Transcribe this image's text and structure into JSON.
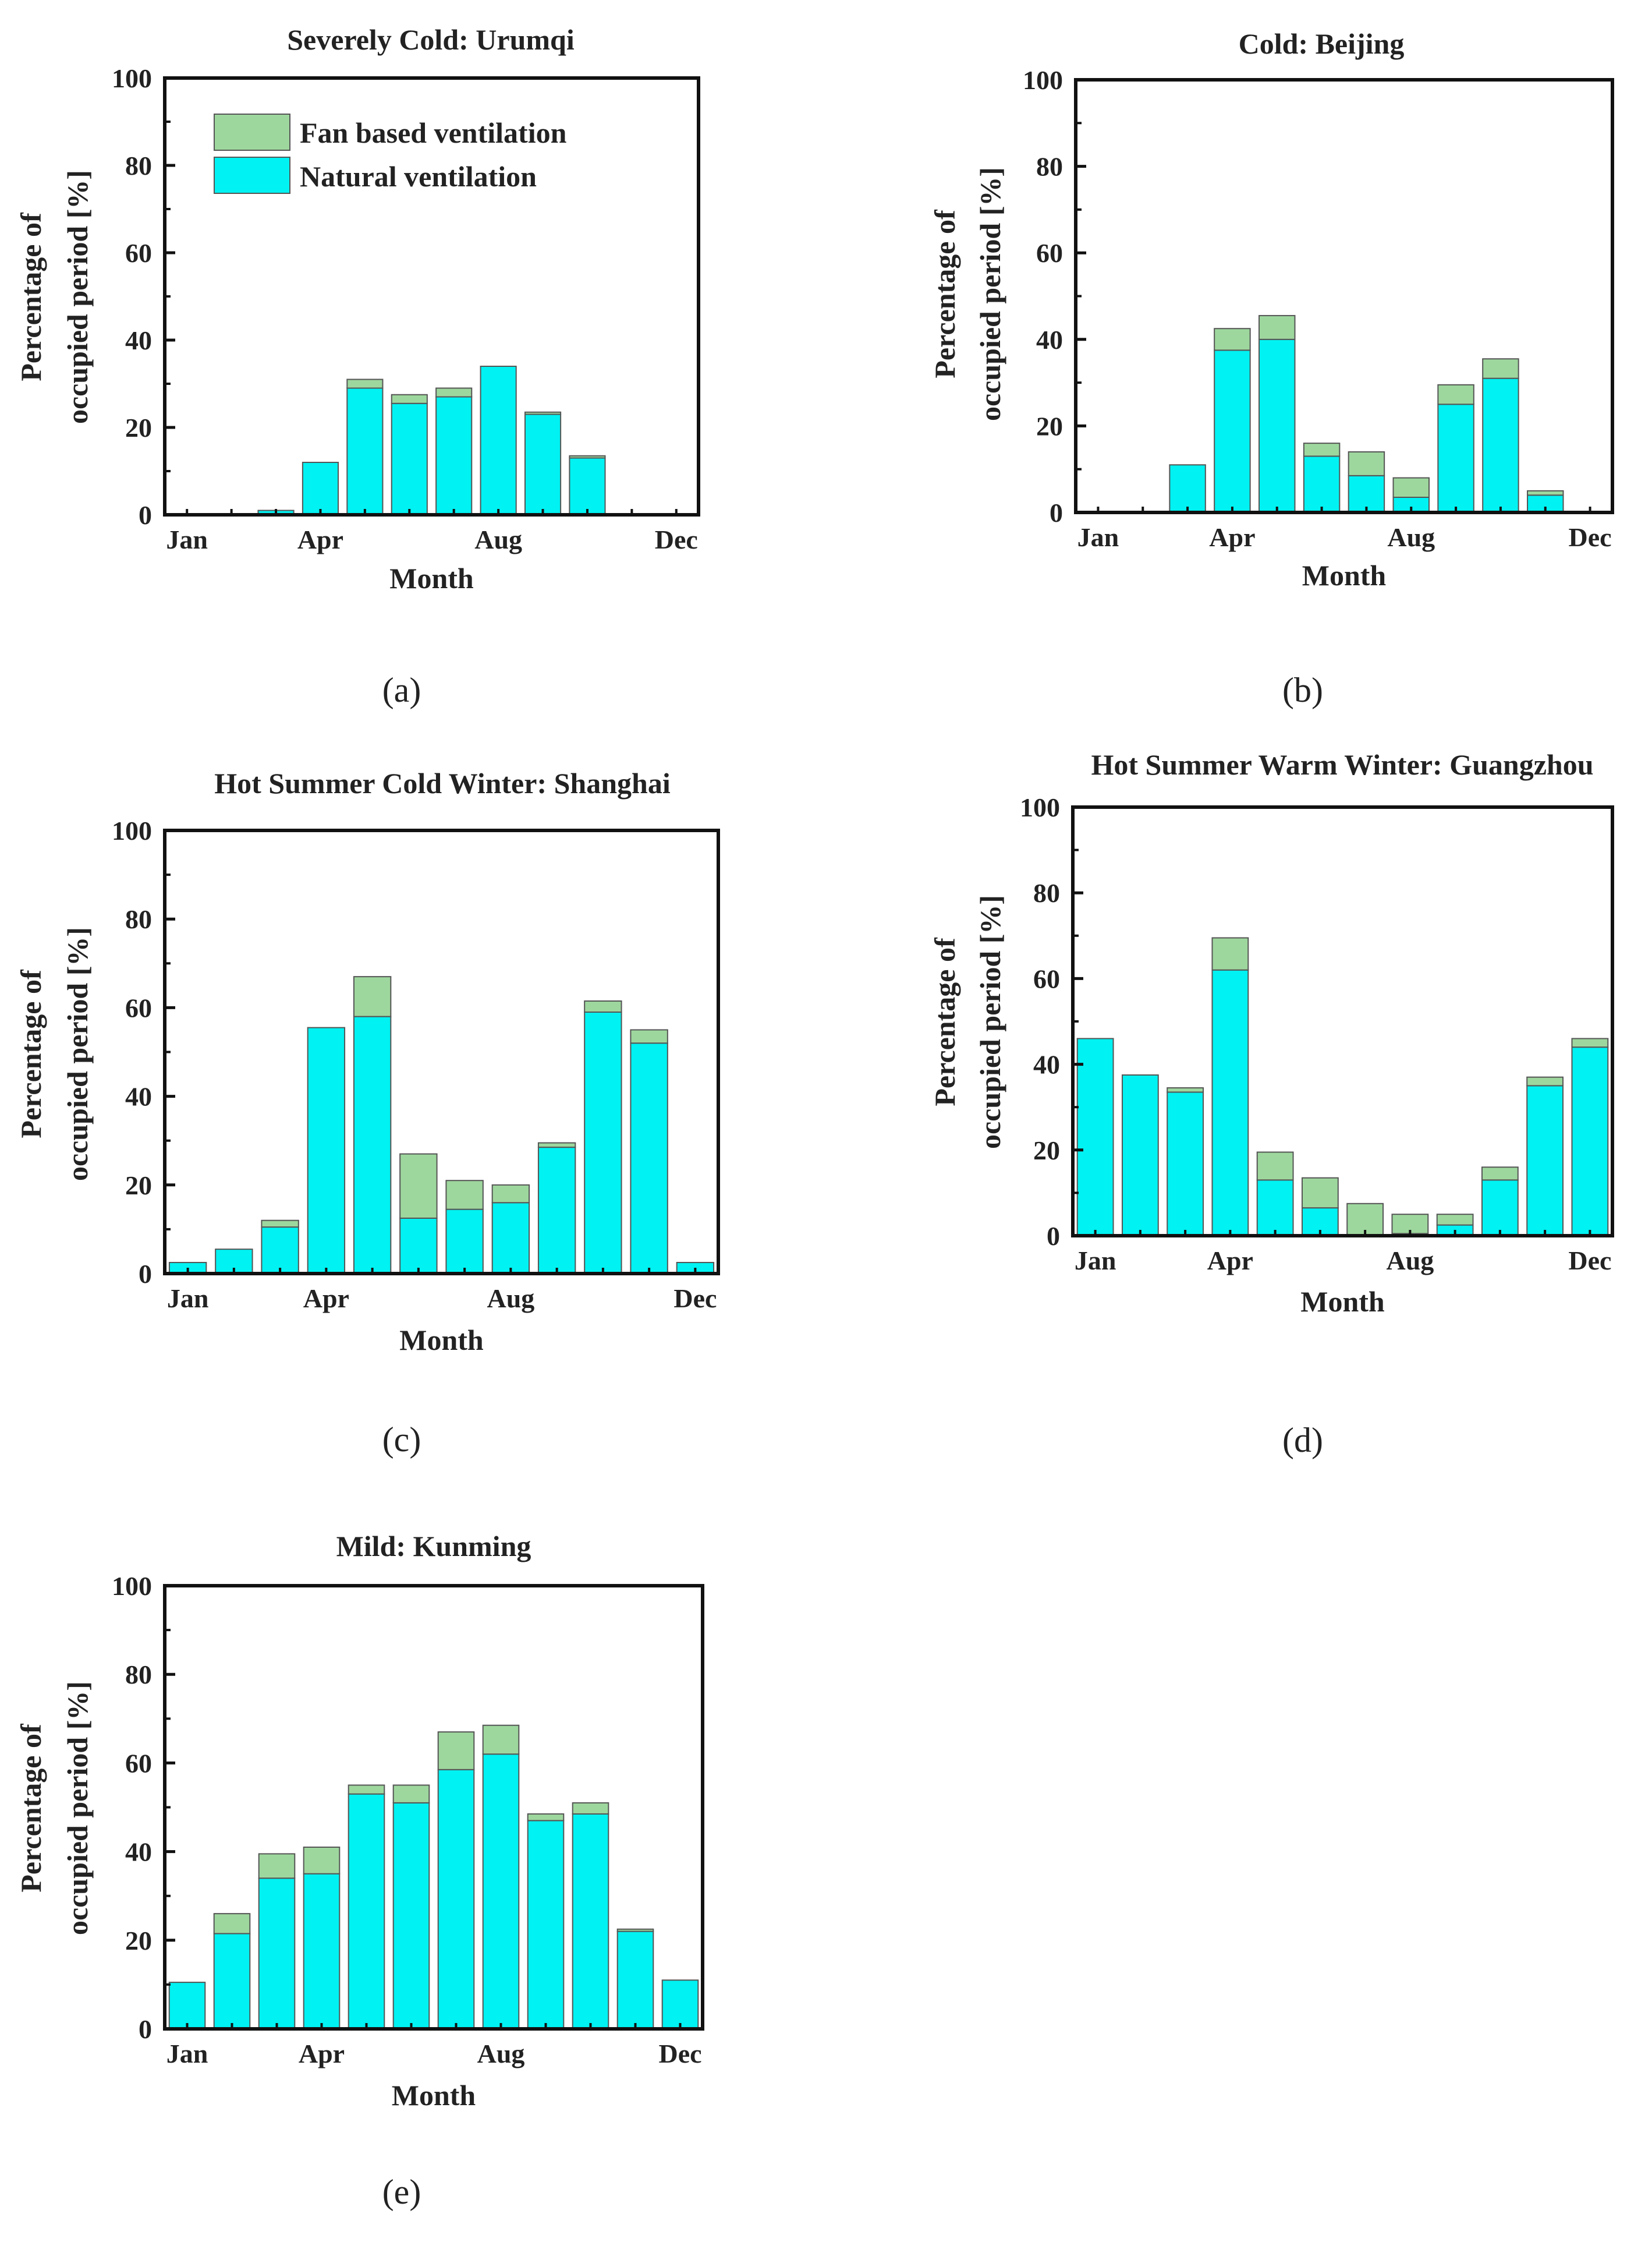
{
  "figure": {
    "colors": {
      "natural": "#00F2F2",
      "fan": "#9ED79E",
      "edge": "#555555",
      "frame": "#111111"
    },
    "legend": {
      "fan_label": "Fan based ventilation",
      "natural_label": "Natural ventilation",
      "placement": "top-left"
    }
  },
  "chart_data": [
    {
      "type": "bar",
      "stacked": true,
      "title": "Severely Cold: Urumqi",
      "caption": "(a)",
      "xlabel": "Month",
      "ylabel_lines": [
        "Percentage of",
        "occupied period [%]"
      ],
      "ylim": [
        0,
        100
      ],
      "yticks": [
        "0",
        "20",
        "40",
        "60",
        "80",
        "100"
      ],
      "xtick_labels": [
        {
          "month": 1,
          "label": "Jan"
        },
        {
          "month": 4,
          "label": "Apr"
        },
        {
          "month": 8,
          "label": "Aug"
        },
        {
          "month": 12,
          "label": "Dec"
        }
      ],
      "categories": [
        1,
        2,
        3,
        4,
        5,
        6,
        7,
        8,
        9,
        10,
        11,
        12
      ],
      "series": [
        {
          "name": "Natural ventilation",
          "values": [
            0,
            0,
            1,
            12,
            29,
            25.5,
            27,
            34,
            23,
            13,
            0,
            0
          ]
        },
        {
          "name": "Fan based ventilation",
          "values": [
            0,
            0,
            0,
            0,
            2,
            2,
            2,
            0,
            0.5,
            0.5,
            0,
            0
          ]
        }
      ],
      "show_legend": true
    },
    {
      "type": "bar",
      "stacked": true,
      "title": "Cold: Beijing",
      "caption": "(b)",
      "xlabel": "Month",
      "ylabel_lines": [
        "Percentage of",
        "occupied period [%]"
      ],
      "ylim": [
        0,
        100
      ],
      "yticks": [
        "0",
        "20",
        "40",
        "60",
        "80",
        "100"
      ],
      "xtick_labels": [
        {
          "month": 1,
          "label": "Jan"
        },
        {
          "month": 4,
          "label": "Apr"
        },
        {
          "month": 8,
          "label": "Aug"
        },
        {
          "month": 12,
          "label": "Dec"
        }
      ],
      "categories": [
        1,
        2,
        3,
        4,
        5,
        6,
        7,
        8,
        9,
        10,
        11,
        12
      ],
      "series": [
        {
          "name": "Natural ventilation",
          "values": [
            0,
            0,
            11,
            37.5,
            40,
            13,
            8.5,
            3.5,
            25,
            31,
            4,
            0
          ]
        },
        {
          "name": "Fan based ventilation",
          "values": [
            0,
            0,
            0,
            5,
            5.5,
            3,
            5.5,
            4.5,
            4.5,
            4.5,
            1,
            0
          ]
        }
      ],
      "show_legend": false
    },
    {
      "type": "bar",
      "stacked": true,
      "title": "Hot Summer Cold Winter: Shanghai",
      "caption": "(c)",
      "xlabel": "Month",
      "ylabel_lines": [
        "Percentage of",
        "occupied period [%]"
      ],
      "ylim": [
        0,
        100
      ],
      "yticks": [
        "0",
        "20",
        "40",
        "60",
        "80",
        "100"
      ],
      "xtick_labels": [
        {
          "month": 1,
          "label": "Jan"
        },
        {
          "month": 4,
          "label": "Apr"
        },
        {
          "month": 8,
          "label": "Aug"
        },
        {
          "month": 12,
          "label": "Dec"
        }
      ],
      "categories": [
        1,
        2,
        3,
        4,
        5,
        6,
        7,
        8,
        9,
        10,
        11,
        12
      ],
      "series": [
        {
          "name": "Natural ventilation",
          "values": [
            2.5,
            5.5,
            10.5,
            55.5,
            58,
            12.5,
            14.5,
            16,
            28.5,
            59,
            52,
            2.5
          ]
        },
        {
          "name": "Fan based ventilation",
          "values": [
            0,
            0,
            1.5,
            0,
            9,
            14.5,
            6.5,
            4,
            1,
            2.5,
            3,
            0
          ]
        }
      ],
      "show_legend": false
    },
    {
      "type": "bar",
      "stacked": true,
      "title": "Hot Summer Warm Winter: Guangzhou",
      "caption": "(d)",
      "xlabel": "Month",
      "ylabel_lines": [
        "Percentage of",
        "occupied period [%]"
      ],
      "ylim": [
        0,
        100
      ],
      "yticks": [
        "0",
        "20",
        "40",
        "60",
        "80",
        "100"
      ],
      "xtick_labels": [
        {
          "month": 1,
          "label": "Jan"
        },
        {
          "month": 4,
          "label": "Apr"
        },
        {
          "month": 8,
          "label": "Aug"
        },
        {
          "month": 12,
          "label": "Dec"
        }
      ],
      "categories": [
        1,
        2,
        3,
        4,
        5,
        6,
        7,
        8,
        9,
        10,
        11,
        12
      ],
      "series": [
        {
          "name": "Natural ventilation",
          "values": [
            46,
            37.5,
            33.5,
            62,
            13,
            6.5,
            0,
            0.5,
            2.5,
            13,
            35,
            44
          ]
        },
        {
          "name": "Fan based ventilation",
          "values": [
            0,
            0,
            1,
            7.5,
            6.5,
            7,
            7.5,
            4.5,
            2.5,
            3,
            2,
            2
          ]
        }
      ],
      "show_legend": false
    },
    {
      "type": "bar",
      "stacked": true,
      "title": "Mild: Kunming",
      "caption": "(e)",
      "xlabel": "Month",
      "ylabel_lines": [
        "Percentage of",
        "occupied period [%]"
      ],
      "ylim": [
        0,
        100
      ],
      "yticks": [
        "0",
        "20",
        "40",
        "60",
        "80",
        "100"
      ],
      "xtick_labels": [
        {
          "month": 1,
          "label": "Jan"
        },
        {
          "month": 4,
          "label": "Apr"
        },
        {
          "month": 8,
          "label": "Aug"
        },
        {
          "month": 12,
          "label": "Dec"
        }
      ],
      "categories": [
        1,
        2,
        3,
        4,
        5,
        6,
        7,
        8,
        9,
        10,
        11,
        12
      ],
      "series": [
        {
          "name": "Natural ventilation",
          "values": [
            10.5,
            21.5,
            34,
            35,
            53,
            51,
            58.5,
            62,
            47,
            48.5,
            22,
            11
          ]
        },
        {
          "name": "Fan based ventilation",
          "values": [
            0,
            4.5,
            5.5,
            6,
            2,
            4,
            8.5,
            6.5,
            1.5,
            2.5,
            0.5,
            0
          ]
        }
      ],
      "show_legend": false
    }
  ]
}
